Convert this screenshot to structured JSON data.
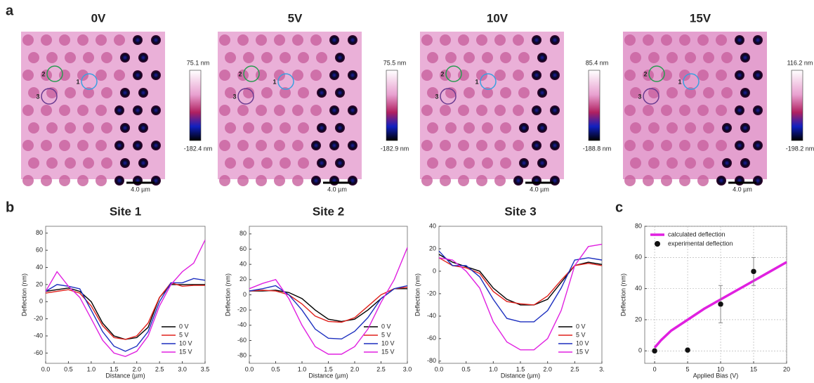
{
  "panel_labels": [
    "a",
    "b",
    "c"
  ],
  "site_labels": [
    "1",
    "2",
    "3"
  ],
  "images": [
    {
      "title": "0V",
      "max_label": "75.1 nm",
      "min_label": "-182.4 nm",
      "scale_bar": "4.0 µm"
    },
    {
      "title": "5V",
      "max_label": "75.5 nm",
      "min_label": "-182.9 nm",
      "scale_bar": "4.0 µm"
    },
    {
      "title": "10V",
      "max_label": "85.4 nm",
      "min_label": "-188.8 nm",
      "scale_bar": "4.0 µm"
    },
    {
      "title": "15V",
      "max_label": "116.2 nm",
      "min_label": "-198.2 nm",
      "scale_bar": "4.0 µm"
    }
  ],
  "chart_data": [
    {
      "type": "line",
      "title": "Site 1",
      "title_color": "#29a9e0",
      "x_label": "Distance (µm)",
      "y_label": "Deflection (nm)",
      "x": [
        0,
        0.25,
        0.5,
        0.75,
        1,
        1.25,
        1.5,
        1.75,
        2,
        2.25,
        2.5,
        2.75,
        3,
        3.25,
        3.5
      ],
      "xlim": [
        0,
        3.5
      ],
      "xticks": [
        {
          "value": 0,
          "label": "0.0"
        },
        0.5,
        {
          "value": 1,
          "label": "1.0"
        },
        1.5,
        {
          "value": 2,
          "label": "2.0"
        },
        2.5,
        {
          "value": 3,
          "label": "3.0"
        },
        3.5
      ],
      "ylim": [
        -72,
        88
      ],
      "yticks": [
        -60,
        -40,
        -20,
        0,
        20,
        40,
        60,
        80
      ],
      "legend": "lower right",
      "series": [
        {
          "name": "0 V",
          "color": "#000000",
          "values": [
            12,
            14,
            16,
            12,
            0,
            -25,
            -40,
            -44,
            -42,
            -30,
            5,
            20,
            20,
            20,
            20
          ]
        },
        {
          "name": "5 V",
          "color": "#e0201b",
          "values": [
            10,
            12,
            14,
            10,
            -5,
            -28,
            -42,
            -44,
            -40,
            -25,
            5,
            22,
            18,
            19,
            19
          ]
        },
        {
          "name": "10 V",
          "color": "#1c2fbf",
          "values": [
            12,
            20,
            18,
            15,
            -10,
            -35,
            -52,
            -58,
            -52,
            -35,
            0,
            22,
            22,
            27,
            25
          ]
        },
        {
          "name": "15 V",
          "color": "#e020e0",
          "values": [
            12,
            35,
            18,
            5,
            -20,
            -45,
            -60,
            -64,
            -58,
            -40,
            -5,
            20,
            35,
            45,
            72
          ]
        }
      ]
    },
    {
      "type": "line",
      "title": "Site 2",
      "title_color": "#22a34a",
      "x_label": "Distance (µm)",
      "y_label": "Deflection (nm)",
      "x": [
        0,
        0.25,
        0.5,
        0.75,
        1,
        1.25,
        1.5,
        1.75,
        2,
        2.25,
        2.5,
        2.75,
        3
      ],
      "xlim": [
        0,
        3
      ],
      "xticks": [
        {
          "value": 0,
          "label": "0.0"
        },
        0.5,
        {
          "value": 1,
          "label": "1.0"
        },
        1.5,
        {
          "value": 2,
          "label": "2.0"
        },
        2.5,
        {
          "value": 3,
          "label": "3.0"
        }
      ],
      "ylim": [
        -90,
        90
      ],
      "yticks": [
        -80,
        -60,
        -40,
        -20,
        0,
        20,
        40,
        60,
        80
      ],
      "legend": "lower right",
      "series": [
        {
          "name": "0 V",
          "color": "#000000",
          "values": [
            5,
            5,
            6,
            3,
            -5,
            -20,
            -32,
            -35,
            -32,
            -20,
            -5,
            8,
            8
          ]
        },
        {
          "name": "5 V",
          "color": "#e0201b",
          "values": [
            5,
            6,
            5,
            0,
            -12,
            -28,
            -35,
            -36,
            -30,
            -15,
            0,
            8,
            10
          ]
        },
        {
          "name": "10 V",
          "color": "#1c2fbf",
          "values": [
            5,
            8,
            12,
            0,
            -20,
            -45,
            -57,
            -58,
            -48,
            -30,
            -5,
            8,
            12
          ]
        },
        {
          "name": "15 V",
          "color": "#e020e0",
          "values": [
            8,
            15,
            20,
            -5,
            -40,
            -68,
            -78,
            -78,
            -68,
            -45,
            -10,
            20,
            62
          ]
        }
      ]
    },
    {
      "type": "line",
      "title": "Site 3",
      "title_color": "#6b3a99",
      "x_label": "Distance (µm)",
      "y_label": "Deflection (nm)",
      "x": [
        0,
        0.25,
        0.5,
        0.75,
        1,
        1.25,
        1.5,
        1.75,
        2,
        2.25,
        2.5,
        2.75,
        3
      ],
      "xlim": [
        0,
        3
      ],
      "xticks": [
        {
          "value": 0,
          "label": "0.0"
        },
        0.5,
        {
          "value": 1,
          "label": "1.0"
        },
        1.5,
        {
          "value": 2,
          "label": "2.0"
        },
        2.5,
        {
          "value": 3,
          "label": "3."
        }
      ],
      "ylim": [
        -82,
        40
      ],
      "yticks": [
        -80,
        -60,
        -40,
        -20,
        0,
        20,
        40
      ],
      "legend": "lower right",
      "series": [
        {
          "name": "0 V",
          "color": "#000000",
          "values": [
            15,
            8,
            4,
            0,
            -15,
            -25,
            -30,
            -30,
            -25,
            -10,
            5,
            8,
            6
          ]
        },
        {
          "name": "5 V",
          "color": "#e0201b",
          "values": [
            12,
            5,
            3,
            -2,
            -18,
            -27,
            -29,
            -30,
            -22,
            -8,
            5,
            7,
            5
          ]
        },
        {
          "name": "10 V",
          "color": "#1c2fbf",
          "values": [
            18,
            5,
            5,
            -5,
            -25,
            -42,
            -45,
            -45,
            -35,
            -15,
            10,
            12,
            10
          ]
        },
        {
          "name": "15 V",
          "color": "#e020e0",
          "values": [
            12,
            10,
            0,
            -15,
            -45,
            -63,
            -70,
            -70,
            -60,
            -35,
            5,
            22,
            24
          ]
        }
      ]
    },
    {
      "type": "scatter",
      "x_label": "Applied Bias (V)",
      "y_label": "Deflection (nm)",
      "xlim": [
        -1.5,
        20
      ],
      "xticks": [
        0,
        5,
        10,
        15,
        20
      ],
      "ylim": [
        -8,
        80
      ],
      "yticks": [
        0,
        20,
        40,
        60,
        80
      ],
      "grid": true,
      "legend": "upper left",
      "series": [
        {
          "name": "calculated deflection",
          "color": "#e020e0",
          "style": "line",
          "x": [
            0,
            1,
            2.5,
            5,
            7.5,
            10,
            12.5,
            15,
            17.5,
            20
          ],
          "values": [
            2,
            7,
            13,
            20,
            27,
            33,
            39,
            45,
            51,
            57
          ]
        },
        {
          "name": "experimental deflection",
          "color": "#111111",
          "style": "marker",
          "x": [
            0,
            5,
            10,
            15
          ],
          "values": [
            0,
            0.5,
            30,
            51
          ],
          "errors": [
            null,
            null,
            12,
            9
          ]
        }
      ]
    }
  ]
}
